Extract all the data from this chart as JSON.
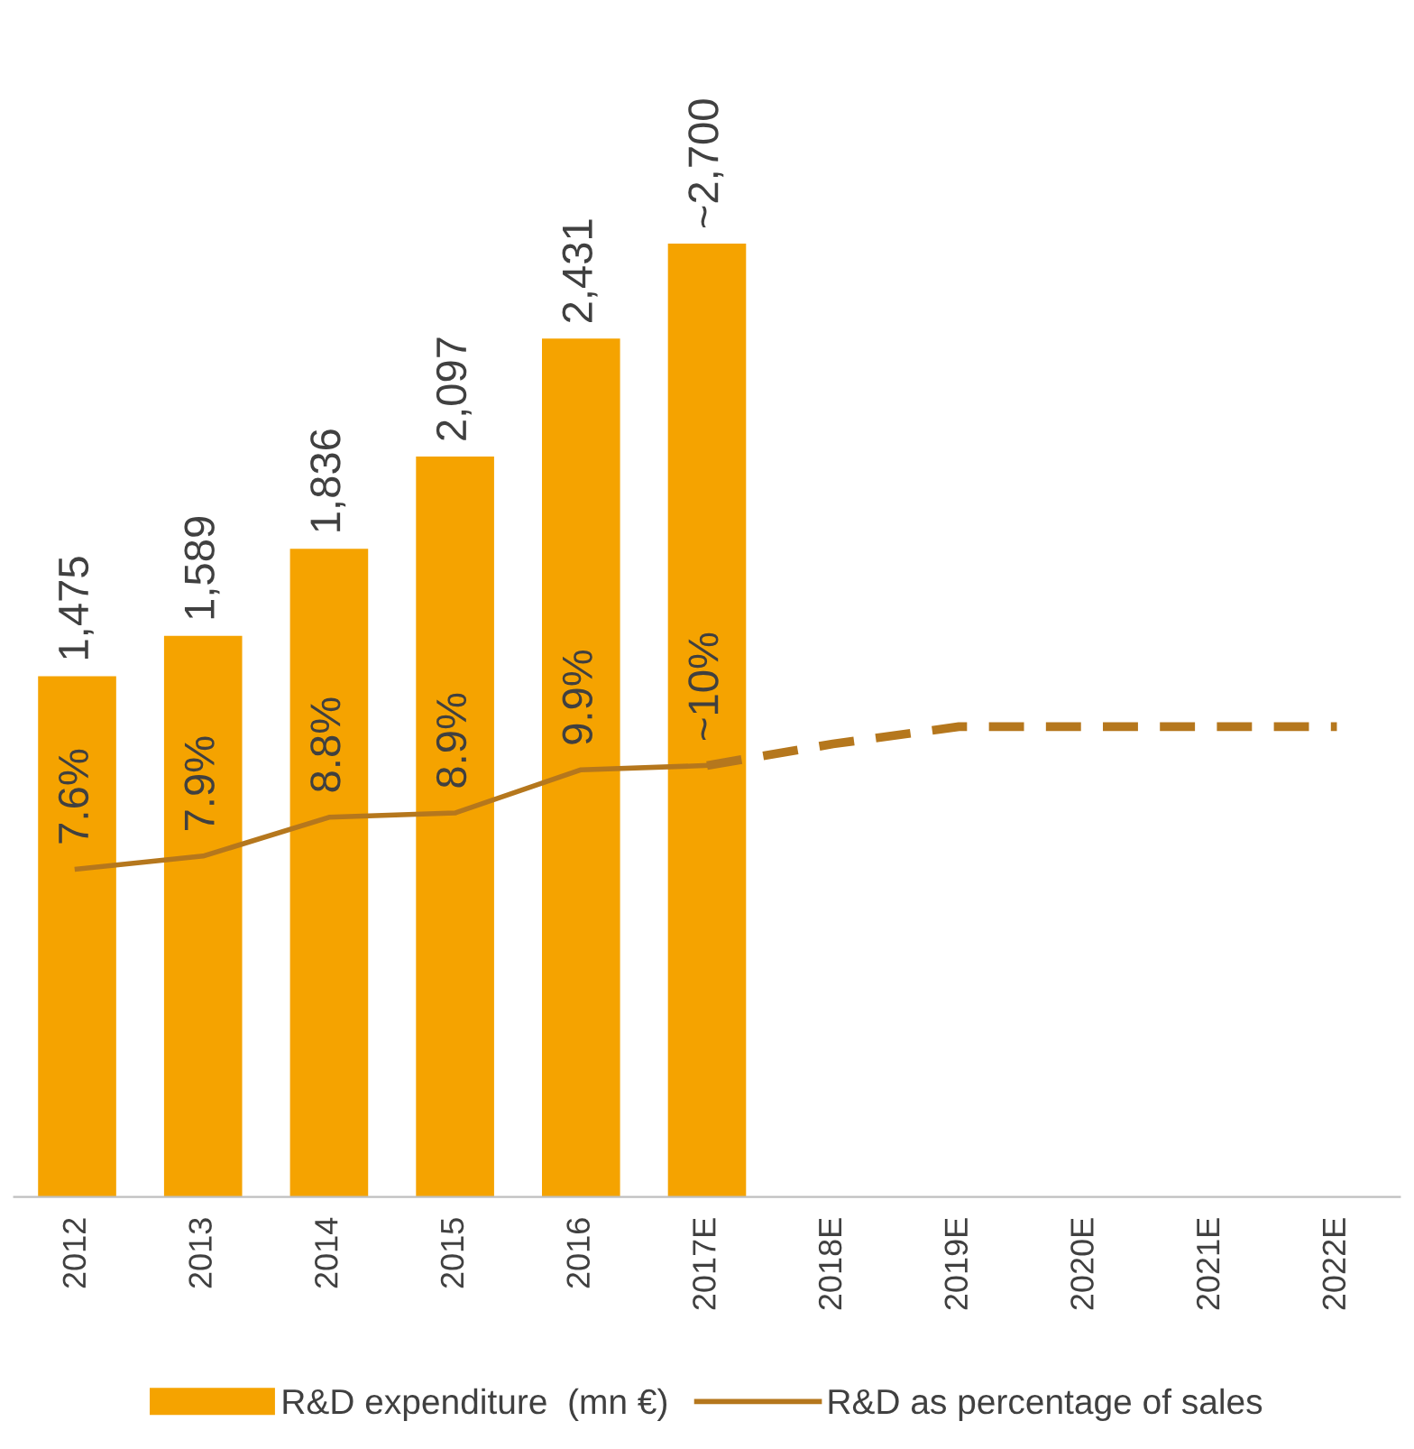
{
  "chart_data": {
    "type": "bar",
    "categories": [
      "2012",
      "2013",
      "2014",
      "2015",
      "2016",
      "2017E",
      "2018E",
      "2019E",
      "2020E",
      "2021E",
      "2022E"
    ],
    "series": [
      {
        "name": "R&D expenditure  (mn €)",
        "color": "#f5a300",
        "values": [
          1475,
          1589,
          1836,
          2097,
          2431,
          2700,
          null,
          null,
          null,
          null,
          null
        ],
        "value_labels": [
          "1,475",
          "1,589",
          "1,836",
          "2,097",
          "2,431",
          "~2,700",
          null,
          null,
          null,
          null,
          null
        ]
      },
      {
        "name": "R&D as percentage of sales",
        "type": "line",
        "axis": "y2",
        "line_style": "solid",
        "color": "#b5771d",
        "values": [
          7.6,
          7.9,
          8.8,
          8.9,
          9.9,
          10,
          null,
          null,
          null,
          null,
          null
        ],
        "value_labels": [
          "7.6%",
          "7.9%",
          "8.8%",
          "8.9%",
          "9.9%",
          "~10%",
          null,
          null,
          null,
          null,
          null
        ]
      },
      {
        "type": "line",
        "axis": "y2",
        "line_style": "dashed",
        "color": "#b5771d",
        "values": [
          null,
          null,
          null,
          null,
          null,
          10,
          10.5,
          10.9,
          10.9,
          10.9,
          10.9
        ]
      }
    ],
    "tick_labels": "x",
    "grid": false,
    "legend": "bottom"
  }
}
